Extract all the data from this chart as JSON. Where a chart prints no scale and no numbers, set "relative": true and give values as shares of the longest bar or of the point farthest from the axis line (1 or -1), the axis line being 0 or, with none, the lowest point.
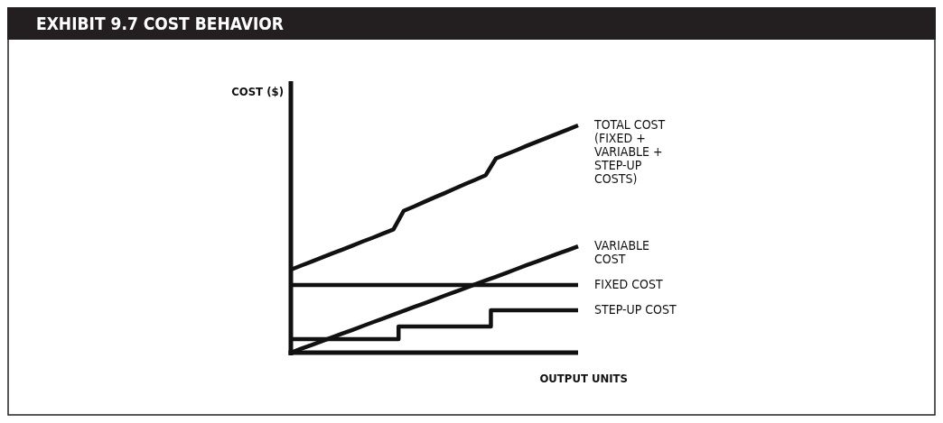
{
  "chart_data": {
    "type": "line",
    "title": "EXHIBIT 9.7  COST BEHAVIOR",
    "xlabel": "OUTPUT UNITS",
    "ylabel": "COST ($)",
    "relative": true,
    "categories": [
      null,
      null,
      null,
      null,
      null,
      null,
      null,
      null,
      null,
      null,
      null,
      null,
      null,
      null,
      null,
      null,
      null,
      null,
      null,
      null,
      null,
      null,
      null,
      null,
      null,
      null,
      null,
      null,
      null
    ],
    "series": [
      {
        "name": "TOTAL COST (FIXED + VARIABLE + STEP-UP COSTS)",
        "color": "#111111",
        "values": [
          0.365,
          0.383,
          0.4,
          0.418,
          0.436,
          0.453,
          0.471,
          0.489,
          0.506,
          0.524,
          0.542,
          0.624,
          0.643,
          0.663,
          0.683,
          0.702,
          0.722,
          0.742,
          0.761,
          0.781,
          0.855,
          0.873,
          0.891,
          0.91,
          0.928,
          0.946,
          0.964,
          0.982,
          1.0
        ]
      },
      {
        "name": "VARIABLE COST",
        "color": "#111111",
        "values": [
          0,
          0.017,
          0.033,
          0.05,
          0.067,
          0.084,
          0.1,
          0.117,
          0.134,
          0.15,
          0.167,
          0.184,
          0.201,
          0.217,
          0.234,
          0.251,
          0.267,
          0.284,
          0.301,
          0.318,
          0.334,
          0.351,
          0.368,
          0.385,
          0.401,
          0.418,
          0.435,
          0.451,
          0.468
        ]
      },
      {
        "name": "FIXED COST",
        "color": "#111111",
        "values": [
          0.298,
          0.298,
          0.298,
          0.298,
          0.298,
          0.298,
          0.298,
          0.298,
          0.298,
          0.298,
          0.298,
          0.298,
          0.298,
          0.298,
          0.298,
          0.298,
          0.298,
          0.298,
          0.298,
          0.298,
          0.298,
          0.298,
          0.298,
          0.298,
          0.298,
          0.298,
          0.298,
          0.298,
          0.298
        ]
      },
      {
        "name": "STEP-UP COST",
        "type": "step",
        "color": "#111111",
        "values": [
          0.06,
          0.06,
          0.06,
          0.06,
          0.06,
          0.06,
          0.06,
          0.06,
          0.06,
          0.06,
          0.06,
          0.115,
          0.115,
          0.115,
          0.115,
          0.115,
          0.115,
          0.115,
          0.115,
          0.115,
          0.187,
          0.187,
          0.187,
          0.187,
          0.187,
          0.187,
          0.187,
          0.187,
          0.187
        ]
      }
    ]
  }
}
